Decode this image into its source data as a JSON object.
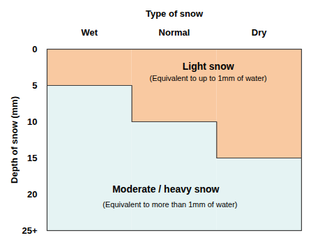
{
  "chart_data": {
    "type": "area",
    "xlabel": "Type of snow",
    "ylabel": "Depth of snow (mm)",
    "categories": [
      "Wet",
      "Normal",
      "Dry"
    ],
    "values": [
      5,
      10,
      15
    ],
    "colors": [
      "#f9c9a1",
      "#e5f3f3"
    ],
    "ylim": [
      0,
      25
    ],
    "yticks": [
      0,
      5,
      10,
      15,
      20,
      {
        "value": 25,
        "label": "25+"
      }
    ],
    "grid": false,
    "annotations": [
      "Light snow",
      "(Equivalent to up to 1mm of water)",
      "Moderate / heavy snow",
      "(Equivalent to more than 1mm of water)"
    ]
  }
}
